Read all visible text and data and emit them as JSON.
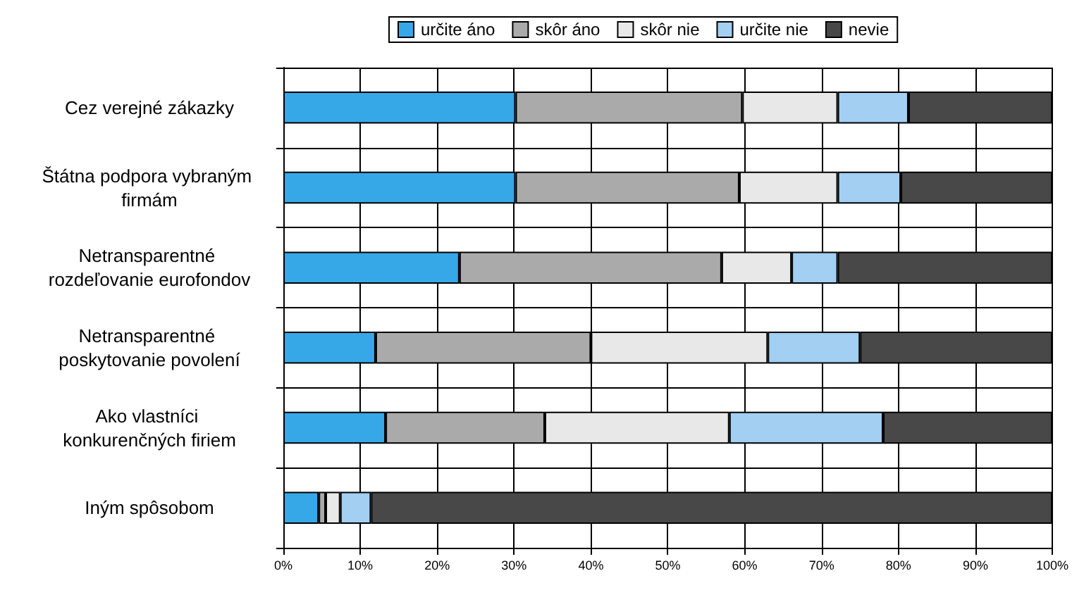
{
  "chart_data": {
    "type": "bar",
    "orientation": "horizontal",
    "stacked": true,
    "legend": "top",
    "grid": true,
    "categories": [
      "Cez verejné zákazky",
      "Štátna podpora vybraným firmám",
      "Netransparentné rozdeľovanie eurofondov",
      "Netransparentné poskytovanie povolení",
      "Ako vlastníci konkurenčných firiem",
      "Iným spôsobom"
    ],
    "xlim": [
      0,
      100
    ],
    "xticks": [
      {
        "value": 0,
        "label": "0%"
      },
      {
        "value": 10,
        "label": "10%"
      },
      {
        "value": 20,
        "label": "20%"
      },
      {
        "value": 30,
        "label": "30%"
      },
      {
        "value": 40,
        "label": "40%"
      },
      {
        "value": 50,
        "label": "50%"
      },
      {
        "value": 60,
        "label": "60%"
      },
      {
        "value": 70,
        "label": "70%"
      },
      {
        "value": 80,
        "label": "80%"
      },
      {
        "value": 90,
        "label": "90%"
      },
      {
        "value": 100,
        "label": "100%"
      }
    ],
    "series": [
      {
        "name": "určite áno",
        "color": "#36a8e8",
        "values": [
          30.2,
          30.2,
          22.9,
          12,
          13.3,
          4.6
        ]
      },
      {
        "name": "skôr áno",
        "color": "#aaaaaa",
        "values": [
          29.5,
          29.1,
          34.1,
          28,
          20.7,
          0.9
        ]
      },
      {
        "name": "skôr nie",
        "color": "#e8e8e8",
        "values": [
          12.4,
          12.8,
          9.1,
          23,
          24,
          1.9
        ]
      },
      {
        "name": "určite nie",
        "color": "#a2cff2",
        "values": [
          9.2,
          8.2,
          6,
          12,
          20,
          4
        ]
      },
      {
        "name": "nevie",
        "color": "#484848",
        "values": [
          18.7,
          19.7,
          27.9,
          25,
          22,
          88.6
        ]
      }
    ]
  }
}
